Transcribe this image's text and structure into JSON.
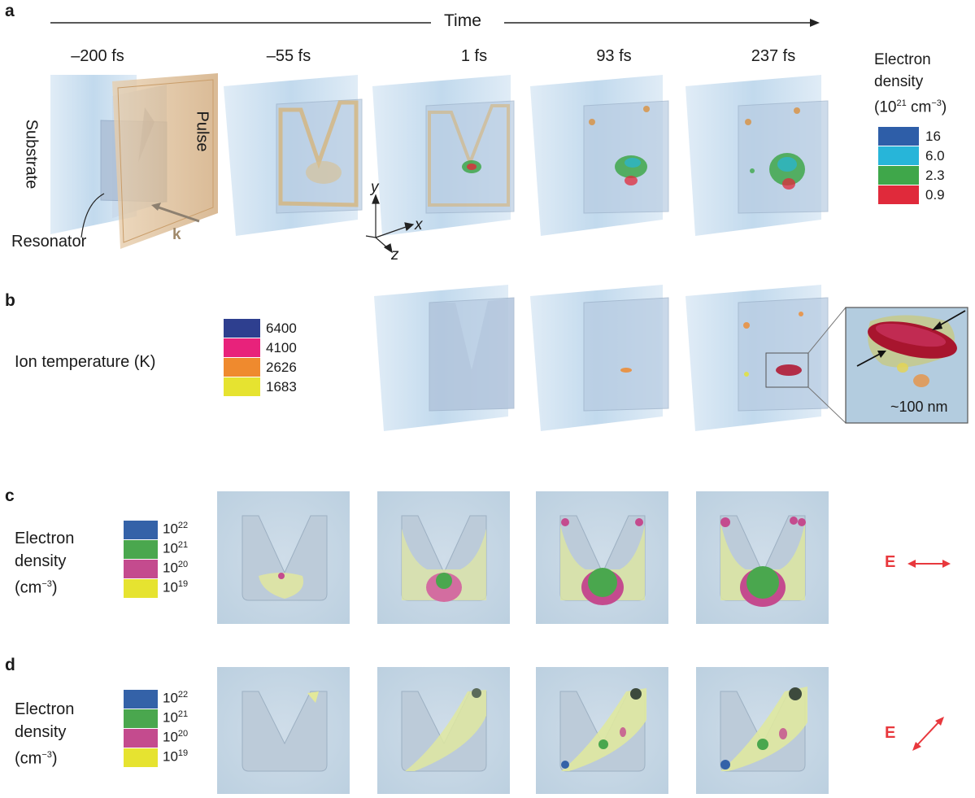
{
  "panels": {
    "a": {
      "letter": "a",
      "time_label": "Time",
      "times": [
        "–200 fs",
        "–55 fs",
        "1 fs",
        "93 fs",
        "237 fs"
      ],
      "labels": {
        "substrate": "Substrate",
        "pulse": "Pulse",
        "resonator": "Resonator",
        "k": "k"
      },
      "axes": {
        "x": "x",
        "y": "y",
        "z": "z"
      },
      "legend": {
        "title_line1": "Electron",
        "title_line2": "density",
        "title_line3_base": "(10",
        "title_line3_exp": "21",
        "title_line3_unit": " cm",
        "title_line3_unit_exp": "−3",
        "title_line3_close": ")",
        "entries": [
          {
            "label": "16",
            "color": "#2e5ea8"
          },
          {
            "label": "6.0",
            "color": "#27b5d9"
          },
          {
            "label": "2.3",
            "color": "#3fa74a"
          },
          {
            "label": "0.9",
            "color": "#e02a3b"
          }
        ]
      }
    },
    "b": {
      "letter": "b",
      "title": "Ion temperature (K)",
      "legend": [
        {
          "label": "6400",
          "color": "#2e3f8f"
        },
        {
          "label": "4100",
          "color": "#e8227b"
        },
        {
          "label": "2626",
          "color": "#ef8a2e"
        },
        {
          "label": "1683",
          "color": "#e6e330"
        }
      ],
      "scale_label": "~100 nm"
    },
    "c": {
      "letter": "c",
      "title_lines": [
        "Electron",
        "density",
        "(cm"
      ],
      "title_exp": "−3",
      "title_close": ")",
      "legend": [
        {
          "base": "10",
          "exp": "22",
          "color": "#3462a8"
        },
        {
          "base": "10",
          "exp": "21",
          "color": "#4aa74e"
        },
        {
          "base": "10",
          "exp": "20",
          "color": "#c44b8e"
        },
        {
          "base": "10",
          "exp": "19",
          "color": "#e6e330"
        }
      ],
      "field_label": "E"
    },
    "d": {
      "letter": "d",
      "title_lines": [
        "Electron",
        "density",
        "(cm"
      ],
      "title_exp": "−3",
      "title_close": ")",
      "legend": [
        {
          "base": "10",
          "exp": "22",
          "color": "#3462a8"
        },
        {
          "base": "10",
          "exp": "21",
          "color": "#4aa74e"
        },
        {
          "base": "10",
          "exp": "20",
          "color": "#c44b8e"
        },
        {
          "base": "10",
          "exp": "19",
          "color": "#e6e330"
        }
      ],
      "field_label": "E"
    }
  },
  "colors": {
    "substrate": "#a9cbe6",
    "resonator": "#aebfd6",
    "pulse": "#d8b88e",
    "field_arrow": "#e8383d",
    "k_label": "#a0896a"
  }
}
